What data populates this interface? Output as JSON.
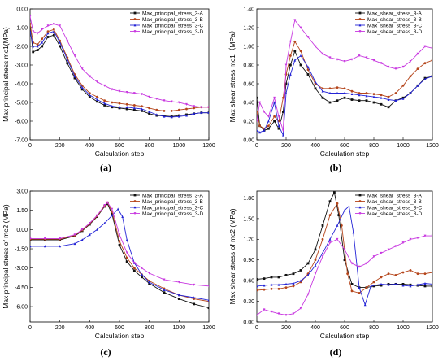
{
  "colors": {
    "A": "#111111",
    "B": "#b5451b",
    "C": "#2424d6",
    "D": "#c837e0"
  },
  "chart_data": [
    {
      "type": "line",
      "panel_label": "(a)",
      "xlabel": "Calculation step",
      "ylabel": "Max principal stress mc1(MPa)",
      "xlim": [
        0,
        1200
      ],
      "ylim": [
        -7.0,
        0.0
      ],
      "xticks": [
        0,
        200,
        400,
        600,
        800,
        1000,
        1200
      ],
      "xtick_labels": [
        "0",
        "200",
        "400",
        "600",
        "800",
        "1000",
        "1200"
      ],
      "yticks": [
        0,
        -1,
        -2,
        -3,
        -4,
        -5,
        -6,
        -7
      ],
      "ytick_labels": [
        "0.00",
        "-1.00",
        "-2.00",
        "-3.00",
        "-4.00",
        "-5.00",
        "-6.00",
        "-7.00"
      ],
      "legend_position": "top-right",
      "series": [
        {
          "name": "Max_principal_stress_3-A",
          "key": "A",
          "x": [
            0,
            20,
            50,
            80,
            120,
            160,
            200,
            250,
            300,
            350,
            400,
            450,
            500,
            550,
            600,
            650,
            700,
            750,
            800,
            850,
            900,
            950,
            1000,
            1050,
            1100,
            1150,
            1200
          ],
          "y": [
            -1.0,
            -2.3,
            -2.2,
            -2.0,
            -1.5,
            -1.4,
            -2.0,
            -2.9,
            -3.7,
            -4.3,
            -4.7,
            -4.95,
            -5.15,
            -5.25,
            -5.3,
            -5.35,
            -5.4,
            -5.45,
            -5.6,
            -5.7,
            -5.72,
            -5.75,
            -5.7,
            -5.65,
            -5.6,
            -5.55,
            -5.55
          ]
        },
        {
          "name": "Max_principal_stress_3-B",
          "key": "B",
          "x": [
            0,
            20,
            50,
            80,
            120,
            160,
            200,
            250,
            300,
            350,
            400,
            450,
            500,
            550,
            600,
            650,
            700,
            750,
            800,
            850,
            900,
            950,
            1000,
            1050,
            1100,
            1150,
            1200
          ],
          "y": [
            -0.8,
            -1.8,
            -1.9,
            -1.6,
            -1.2,
            -1.1,
            -1.7,
            -2.6,
            -3.5,
            -4.1,
            -4.5,
            -4.7,
            -4.9,
            -5.0,
            -5.05,
            -5.1,
            -5.15,
            -5.2,
            -5.3,
            -5.4,
            -5.45,
            -5.45,
            -5.4,
            -5.35,
            -5.3,
            -5.25,
            -5.25
          ]
        },
        {
          "name": "Max_principal_stress_3-C",
          "key": "C",
          "x": [
            0,
            20,
            50,
            80,
            120,
            160,
            200,
            250,
            300,
            350,
            400,
            450,
            500,
            550,
            600,
            650,
            700,
            750,
            800,
            850,
            900,
            950,
            1000,
            1050,
            1100,
            1150,
            1200
          ],
          "y": [
            -1.2,
            -2.0,
            -2.0,
            -1.8,
            -1.3,
            -1.2,
            -1.8,
            -2.7,
            -3.6,
            -4.2,
            -4.6,
            -4.85,
            -5.05,
            -5.2,
            -5.25,
            -5.25,
            -5.3,
            -5.35,
            -5.5,
            -5.65,
            -5.75,
            -5.78,
            -5.75,
            -5.7,
            -5.6,
            -5.55,
            -5.55
          ]
        },
        {
          "name": "Max_principal_stress_3-D",
          "key": "D",
          "x": [
            0,
            20,
            50,
            80,
            120,
            160,
            200,
            250,
            300,
            350,
            400,
            450,
            500,
            550,
            600,
            650,
            700,
            750,
            800,
            850,
            900,
            950,
            1000,
            1050,
            1100,
            1150,
            1200
          ],
          "y": [
            -0.4,
            -1.2,
            -1.3,
            -1.1,
            -0.9,
            -0.8,
            -0.9,
            -1.7,
            -2.5,
            -3.2,
            -3.6,
            -3.9,
            -4.1,
            -4.3,
            -4.4,
            -4.45,
            -4.5,
            -4.55,
            -4.7,
            -4.8,
            -4.9,
            -4.95,
            -5.0,
            -5.1,
            -5.2,
            -5.25,
            -5.25
          ]
        }
      ]
    },
    {
      "type": "line",
      "panel_label": "(b)",
      "xlabel": "Calculation step",
      "ylabel": "Max shear stress mc1（MPa）",
      "xlim": [
        0,
        1200
      ],
      "ylim": [
        0.0,
        1.4
      ],
      "xticks": [
        0,
        200,
        400,
        600,
        800,
        1000,
        1200
      ],
      "xtick_labels": [
        "0",
        "200",
        "400",
        "600",
        "800",
        "1000",
        "1200"
      ],
      "yticks": [
        0,
        0.2,
        0.4,
        0.6,
        0.8,
        1.0,
        1.2,
        1.4
      ],
      "ytick_labels": [
        "0.00",
        "0.20",
        "0.40",
        "0.60",
        "0.80",
        "1.00",
        "1.20",
        "1.40"
      ],
      "legend_position": "top-right",
      "series": [
        {
          "name": "Max_shear_stress_3-A",
          "key": "A",
          "x": [
            0,
            20,
            50,
            80,
            120,
            150,
            180,
            200,
            230,
            260,
            300,
            350,
            400,
            450,
            500,
            550,
            600,
            650,
            700,
            750,
            800,
            850,
            900,
            950,
            1000,
            1050,
            1100,
            1150,
            1200
          ],
          "y": [
            0.45,
            0.15,
            0.1,
            0.12,
            0.2,
            0.12,
            0.3,
            0.6,
            0.8,
            0.95,
            0.8,
            0.7,
            0.55,
            0.45,
            0.4,
            0.42,
            0.45,
            0.43,
            0.42,
            0.42,
            0.4,
            0.38,
            0.35,
            0.42,
            0.45,
            0.5,
            0.58,
            0.66,
            0.68
          ]
        },
        {
          "name": "Max_shear_stress_3-B",
          "key": "B",
          "x": [
            0,
            20,
            50,
            80,
            120,
            150,
            180,
            200,
            230,
            260,
            300,
            350,
            400,
            450,
            500,
            550,
            600,
            650,
            700,
            750,
            800,
            850,
            900,
            950,
            1000,
            1050,
            1100,
            1150,
            1200
          ],
          "y": [
            0.3,
            0.15,
            0.12,
            0.15,
            0.25,
            0.2,
            0.45,
            0.7,
            0.9,
            1.05,
            0.95,
            0.75,
            0.6,
            0.55,
            0.55,
            0.56,
            0.55,
            0.52,
            0.5,
            0.5,
            0.49,
            0.48,
            0.46,
            0.5,
            0.58,
            0.68,
            0.76,
            0.82,
            0.85
          ]
        },
        {
          "name": "Max_shear_stress_3-C",
          "key": "C",
          "x": [
            0,
            20,
            50,
            80,
            120,
            150,
            180,
            200,
            230,
            260,
            300,
            350,
            400,
            450,
            500,
            550,
            600,
            650,
            700,
            750,
            800,
            850,
            900,
            950,
            1000,
            1050,
            1100,
            1150,
            1200
          ],
          "y": [
            0.1,
            0.08,
            0.1,
            0.2,
            0.4,
            0.15,
            0.05,
            0.5,
            0.7,
            0.85,
            0.9,
            0.78,
            0.62,
            0.52,
            0.5,
            0.5,
            0.5,
            0.49,
            0.48,
            0.47,
            0.46,
            0.45,
            0.43,
            0.42,
            0.44,
            0.5,
            0.58,
            0.65,
            0.68
          ]
        },
        {
          "name": "Max_shear_stress_3-D",
          "key": "D",
          "x": [
            0,
            20,
            50,
            80,
            120,
            150,
            180,
            200,
            230,
            260,
            300,
            350,
            400,
            450,
            500,
            550,
            600,
            650,
            700,
            750,
            800,
            850,
            900,
            950,
            1000,
            1050,
            1100,
            1150,
            1200
          ],
          "y": [
            0.2,
            0.4,
            0.3,
            0.25,
            0.45,
            0.25,
            0.1,
            0.8,
            1.05,
            1.28,
            1.2,
            1.1,
            1.0,
            0.92,
            0.88,
            0.86,
            0.84,
            0.86,
            0.9,
            0.88,
            0.85,
            0.82,
            0.78,
            0.76,
            0.78,
            0.84,
            0.92,
            1.0,
            0.98
          ]
        }
      ]
    },
    {
      "type": "line",
      "panel_label": "(c)",
      "xlabel": "Calculation step",
      "ylabel": "Max principal stress of mc2 (MPa)",
      "xlim": [
        0,
        1200
      ],
      "ylim": [
        -7.2,
        3.0
      ],
      "xticks": [
        0,
        200,
        400,
        600,
        800,
        1000,
        1200
      ],
      "xtick_labels": [
        "0",
        "200",
        "400",
        "600",
        "800",
        "1000",
        "1200"
      ],
      "yticks": [
        3.0,
        1.5,
        0.0,
        -1.5,
        -3.0,
        -4.5,
        -6.0
      ],
      "ytick_labels": [
        "3.00",
        "1.50",
        "0.00",
        "-1.50",
        "-3.00",
        "-4.50",
        "-6.00"
      ],
      "legend_position": "top-right",
      "series": [
        {
          "name": "Max_principal_stress_3-A",
          "key": "A",
          "x": [
            0,
            100,
            200,
            300,
            350,
            400,
            450,
            500,
            520,
            550,
            600,
            650,
            700,
            750,
            800,
            900,
            1000,
            1100,
            1200
          ],
          "y": [
            -0.8,
            -0.8,
            -0.8,
            -0.5,
            -0.1,
            0.4,
            1.0,
            1.8,
            2.0,
            1.2,
            -1.2,
            -2.5,
            -3.2,
            -3.7,
            -4.2,
            -4.9,
            -5.4,
            -5.8,
            -6.1
          ]
        },
        {
          "name": "Max_principal_stress_3-B",
          "key": "B",
          "x": [
            0,
            100,
            200,
            300,
            350,
            400,
            450,
            500,
            520,
            550,
            600,
            650,
            700,
            750,
            800,
            900,
            1000,
            1100,
            1200
          ],
          "y": [
            -0.75,
            -0.75,
            -0.75,
            -0.45,
            -0.05,
            0.45,
            1.05,
            1.85,
            2.1,
            1.4,
            -0.9,
            -2.2,
            -3.0,
            -3.5,
            -4.0,
            -4.6,
            -5.1,
            -5.4,
            -5.6
          ]
        },
        {
          "name": "Max_principal_stress_3-C",
          "key": "C",
          "x": [
            0,
            100,
            200,
            300,
            350,
            400,
            450,
            500,
            550,
            590,
            620,
            650,
            700,
            750,
            800,
            900,
            1000,
            1100,
            1200
          ],
          "y": [
            -1.3,
            -1.3,
            -1.3,
            -1.1,
            -0.8,
            -0.4,
            0.0,
            0.5,
            1.1,
            1.6,
            1.0,
            -0.8,
            -2.6,
            -3.5,
            -4.1,
            -4.7,
            -5.1,
            -5.3,
            -5.5
          ]
        },
        {
          "name": "Max_principal_stress_3-D",
          "key": "D",
          "x": [
            0,
            100,
            200,
            300,
            350,
            400,
            450,
            500,
            520,
            550,
            600,
            650,
            700,
            750,
            800,
            900,
            1000,
            1100,
            1200
          ],
          "y": [
            -0.7,
            -0.7,
            -0.7,
            -0.4,
            0.0,
            0.5,
            1.1,
            1.9,
            2.1,
            1.6,
            -0.4,
            -1.8,
            -2.6,
            -3.0,
            -3.4,
            -3.9,
            -4.1,
            -4.3,
            -4.4
          ]
        }
      ]
    },
    {
      "type": "line",
      "panel_label": "(d)",
      "xlabel": "Calculation step",
      "ylabel": "Max shear stress of mc2 (MPa)",
      "xlim": [
        0,
        1200
      ],
      "ylim": [
        0.0,
        1.9
      ],
      "xticks": [
        0,
        200,
        400,
        600,
        800,
        1000,
        1200
      ],
      "xtick_labels": [
        "0",
        "200",
        "400",
        "600",
        "800",
        "1000",
        "1200"
      ],
      "yticks": [
        0.0,
        0.3,
        0.6,
        0.9,
        1.2,
        1.5,
        1.8
      ],
      "ytick_labels": [
        "0.00",
        "0.30",
        "0.60",
        "0.90",
        "1.20",
        "1.50",
        "1.80"
      ],
      "legend_position": "top-right",
      "series": [
        {
          "name": "Max_shear_stress_3-A",
          "key": "A",
          "x": [
            0,
            50,
            100,
            150,
            200,
            250,
            300,
            350,
            400,
            450,
            500,
            530,
            560,
            600,
            650,
            700,
            750,
            800,
            850,
            900,
            950,
            1000,
            1050,
            1100,
            1150,
            1200
          ],
          "y": [
            0.62,
            0.63,
            0.65,
            0.65,
            0.68,
            0.7,
            0.75,
            0.85,
            1.05,
            1.4,
            1.75,
            1.88,
            1.55,
            0.9,
            0.55,
            0.5,
            0.5,
            0.52,
            0.53,
            0.55,
            0.55,
            0.55,
            0.54,
            0.53,
            0.52,
            0.52
          ]
        },
        {
          "name": "Max_shear_stress_3-B",
          "key": "B",
          "x": [
            0,
            50,
            100,
            150,
            200,
            250,
            300,
            350,
            400,
            450,
            500,
            550,
            580,
            620,
            650,
            700,
            750,
            800,
            850,
            900,
            950,
            1000,
            1050,
            1100,
            1150,
            1200
          ],
          "y": [
            0.46,
            0.47,
            0.48,
            0.48,
            0.5,
            0.52,
            0.58,
            0.7,
            0.9,
            1.2,
            1.55,
            1.72,
            1.4,
            0.7,
            0.45,
            0.42,
            0.5,
            0.58,
            0.65,
            0.7,
            0.68,
            0.72,
            0.75,
            0.7,
            0.7,
            0.72
          ]
        },
        {
          "name": "Max_shear_stress_3-C",
          "key": "C",
          "x": [
            0,
            50,
            100,
            150,
            200,
            250,
            300,
            350,
            400,
            450,
            500,
            550,
            600,
            630,
            660,
            700,
            740,
            780,
            850,
            900,
            950,
            1000,
            1050,
            1100,
            1150,
            1200
          ],
          "y": [
            0.52,
            0.53,
            0.54,
            0.54,
            0.55,
            0.56,
            0.6,
            0.68,
            0.82,
            1.0,
            1.2,
            1.4,
            1.62,
            1.68,
            1.3,
            0.5,
            0.25,
            0.52,
            0.55,
            0.54,
            0.55,
            0.53,
            0.52,
            0.54,
            0.56,
            0.55
          ]
        },
        {
          "name": "Max_shear_stress_3-D",
          "key": "D",
          "x": [
            0,
            50,
            100,
            150,
            200,
            250,
            300,
            350,
            400,
            450,
            500,
            550,
            600,
            650,
            700,
            750,
            800,
            850,
            900,
            950,
            1000,
            1050,
            1100,
            1150,
            1200
          ],
          "y": [
            0.1,
            0.18,
            0.15,
            0.12,
            0.1,
            0.12,
            0.2,
            0.4,
            0.7,
            0.95,
            1.15,
            1.2,
            1.05,
            0.85,
            0.8,
            0.85,
            0.95,
            1.0,
            1.05,
            1.1,
            1.15,
            1.2,
            1.22,
            1.25,
            1.25
          ]
        }
      ]
    }
  ]
}
